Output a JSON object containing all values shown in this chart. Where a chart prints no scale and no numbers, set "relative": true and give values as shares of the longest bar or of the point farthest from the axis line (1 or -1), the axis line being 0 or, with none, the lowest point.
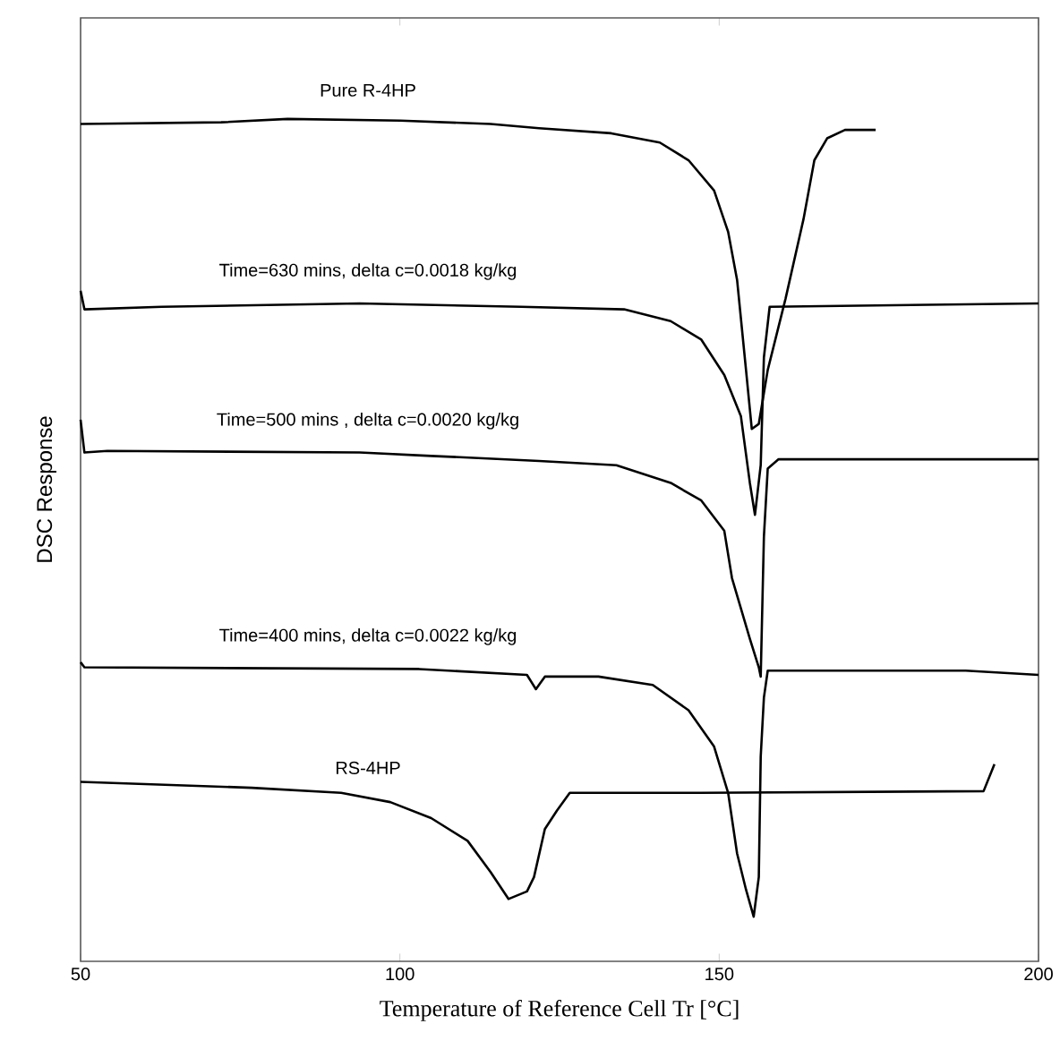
{
  "chart_data": {
    "type": "line",
    "relative": true,
    "xlabel": "Temperature of Reference Cell Tr [°C]",
    "ylabel": "DSC Response",
    "xlim": [
      50,
      200
    ],
    "xticks": [
      50,
      100,
      150,
      200
    ],
    "grid": false,
    "marker": "none",
    "line_style": "solid",
    "series": [
      {
        "name": "Pure R-4HP",
        "color": "#000000",
        "x": [
          50,
          72.0,
          82.4,
          100.1,
          114.2,
          121.8,
          133.1,
          140.7,
          145.2,
          149.2,
          151.4,
          152.8,
          154.2,
          155.1,
          156.2,
          157.6,
          160.4,
          163.2,
          164.9,
          166.9,
          169.7,
          174.5
        ],
        "values": [
          0.994,
          0.996,
          1.0,
          0.998,
          0.994,
          0.989,
          0.983,
          0.972,
          0.951,
          0.915,
          0.866,
          0.809,
          0.702,
          0.632,
          0.638,
          0.702,
          0.787,
          0.881,
          0.951,
          0.977,
          0.987,
          0.987
        ]
      },
      {
        "name": "Time=630 mins, delta c=0.0018 kg/kg",
        "color": "#000000",
        "x": [
          50,
          50.6,
          62.7,
          93.7,
          119.0,
          135.1,
          142.4,
          147.2,
          150.8,
          153.4,
          154.8,
          155.6,
          156.5,
          157.0,
          157.9,
          200
        ],
        "values": [
          0.796,
          0.774,
          0.777,
          0.781,
          0.777,
          0.774,
          0.76,
          0.738,
          0.696,
          0.647,
          0.568,
          0.53,
          0.589,
          0.717,
          0.777,
          0.781
        ]
      },
      {
        "name": "Time=500 mins , delta c=0.0020 kg/kg",
        "color": "#000000",
        "x": [
          50,
          50.6,
          54.2,
          93.7,
          104.9,
          121.8,
          133.9,
          142.4,
          147.2,
          150.8,
          152.0,
          154.8,
          156.2,
          156.5,
          157.0,
          157.6,
          159.3,
          200
        ],
        "values": [
          0.643,
          0.604,
          0.606,
          0.604,
          0.6,
          0.594,
          0.589,
          0.568,
          0.547,
          0.511,
          0.455,
          0.383,
          0.349,
          0.338,
          0.504,
          0.585,
          0.596,
          0.596
        ]
      },
      {
        "name": "Time=400 mins, delta c=0.0022 kg/kg",
        "color": "#000000",
        "x": [
          50,
          50.6,
          103.0,
          119.9,
          121.3,
          122.7,
          131.1,
          139.6,
          145.2,
          149.2,
          151.4,
          152.8,
          154.2,
          155.4,
          156.2,
          156.5,
          157.0,
          157.6,
          188.6,
          200
        ],
        "values": [
          0.355,
          0.349,
          0.347,
          0.34,
          0.323,
          0.338,
          0.338,
          0.328,
          0.298,
          0.255,
          0.2,
          0.128,
          0.085,
          0.053,
          0.1,
          0.243,
          0.313,
          0.345,
          0.345,
          0.34
        ]
      },
      {
        "name": "RS-4HP",
        "color": "#000000",
        "x": [
          50,
          76.8,
          90.8,
          98.5,
          104.9,
          110.6,
          114.2,
          117.0,
          119.9,
          121.0,
          122.7,
          124.6,
          126.6,
          147.2,
          191.4,
          193.1
        ],
        "values": [
          0.213,
          0.206,
          0.2,
          0.189,
          0.17,
          0.143,
          0.106,
          0.074,
          0.083,
          0.1,
          0.157,
          0.179,
          0.2,
          0.2,
          0.202,
          0.234
        ]
      }
    ]
  }
}
